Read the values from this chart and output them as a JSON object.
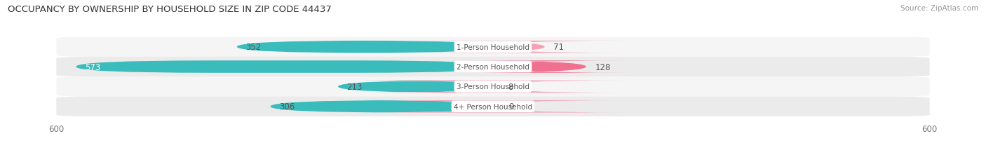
{
  "title": "OCCUPANCY BY OWNERSHIP BY HOUSEHOLD SIZE IN ZIP CODE 44437",
  "source": "Source: ZipAtlas.com",
  "categories": [
    "1-Person Household",
    "2-Person Household",
    "3-Person Household",
    "4+ Person Household"
  ],
  "owner_values": [
    352,
    573,
    213,
    306
  ],
  "renter_values": [
    71,
    128,
    8,
    9
  ],
  "owner_color": "#3BBCBC",
  "renter_color": "#F07090",
  "renter_color_light": "#F4A0B8",
  "row_bg_even": "#EBEBEB",
  "row_bg_odd": "#F5F5F5",
  "x_max": 600,
  "label_fontsize": 8.5,
  "title_fontsize": 9.5,
  "source_fontsize": 7.5,
  "tick_fontsize": 8.5,
  "bar_height": 0.62
}
